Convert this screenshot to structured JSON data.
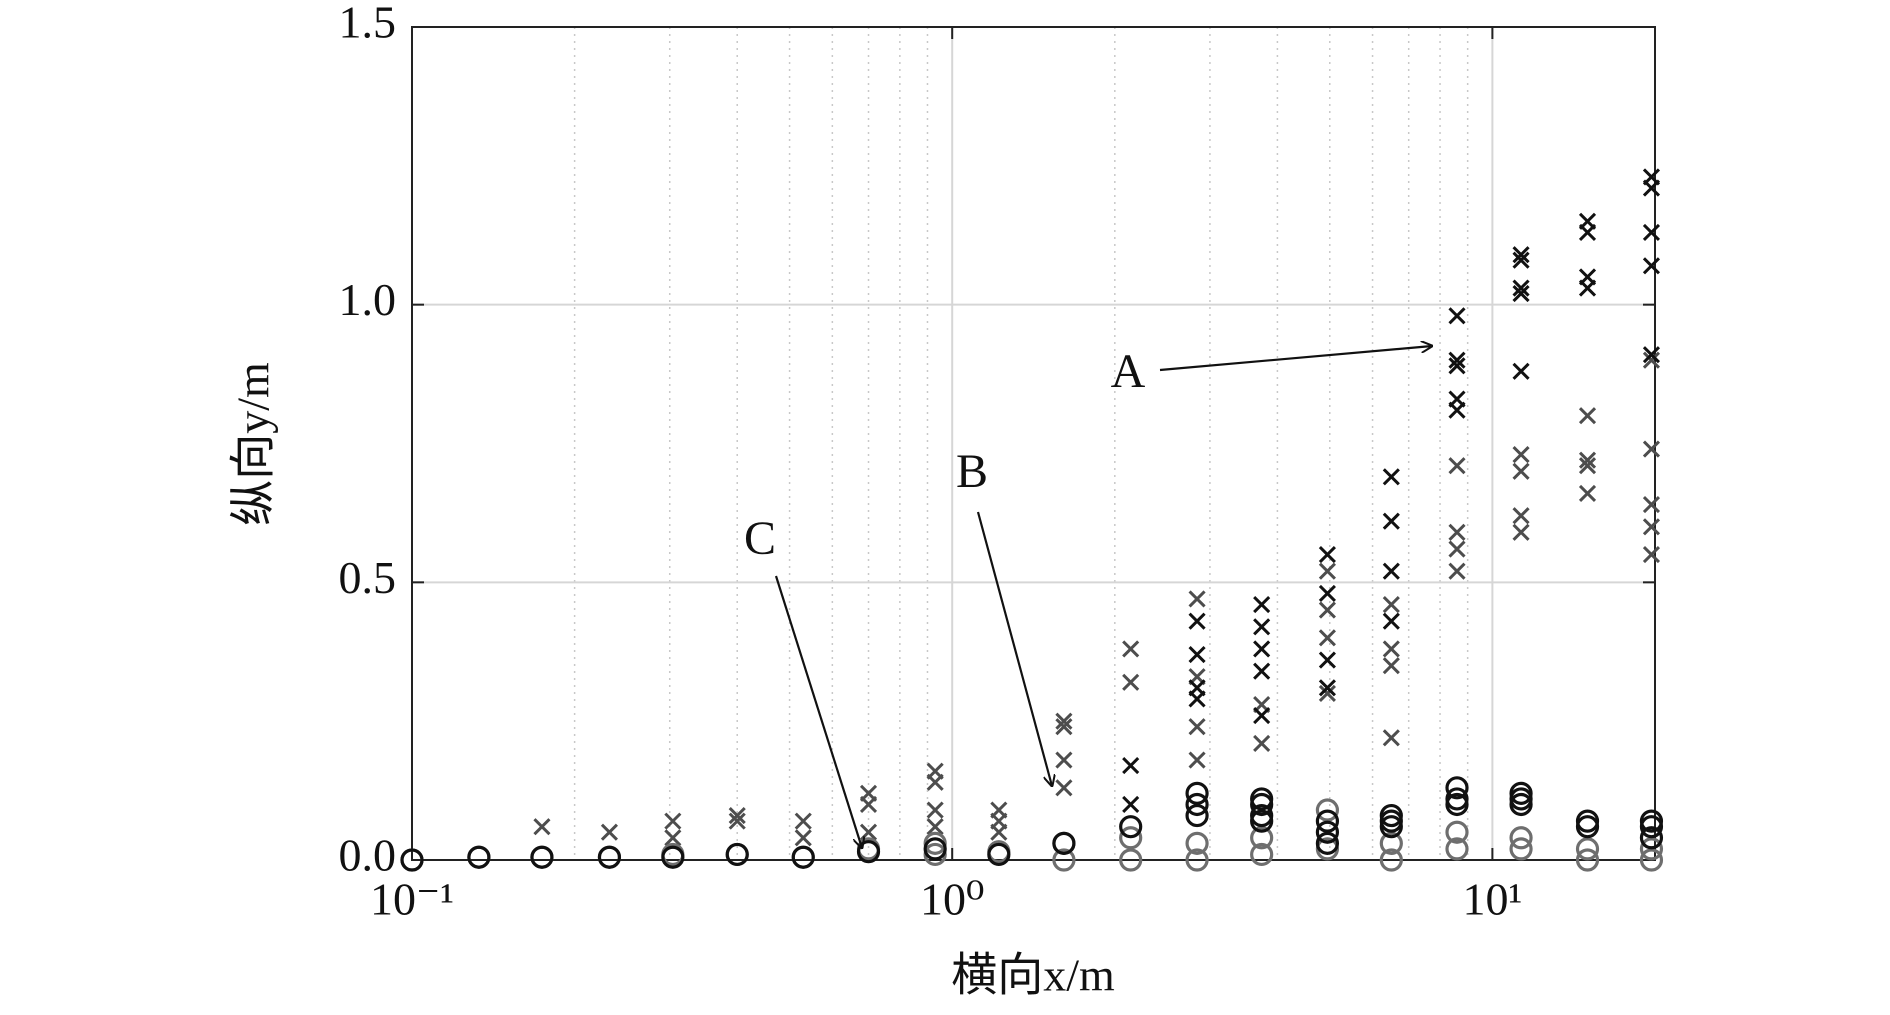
{
  "chart_data": {
    "type": "scatter",
    "xlabel": "横向x/m",
    "ylabel": "纵向y/m",
    "xscale": "log",
    "xlim": [
      0.1,
      20
    ],
    "ylim": [
      0,
      1.5
    ],
    "xticks": [
      {
        "value": 0.1,
        "label": "10⁻¹"
      },
      {
        "value": 1,
        "label": "10⁰"
      },
      {
        "value": 10,
        "label": "10¹"
      }
    ],
    "yticks": [
      {
        "value": 0,
        "label": "0.0"
      },
      0.5,
      {
        "value": 1,
        "label": "1.0"
      },
      1.5
    ],
    "grid": true,
    "minor_grid": true,
    "annotations": [
      "A",
      "B",
      "C"
    ],
    "series": [
      {
        "color": "#4d4d4d",
        "marker": "x",
        "x": [
          0.174,
          0.232,
          0.304,
          0.304,
          0.4,
          0.4,
          0.53,
          0.53,
          0.7,
          0.7,
          0.7,
          0.93,
          0.93,
          0.93,
          0.93,
          1.22,
          1.22,
          1.22,
          1.61,
          1.61,
          1.61,
          1.61,
          2.14,
          2.14,
          2.84,
          2.84,
          2.84,
          2.84,
          3.74,
          3.74,
          4.95,
          4.95,
          4.95,
          4.95,
          6.5,
          6.5,
          6.5,
          6.5,
          8.6,
          8.6,
          8.6,
          8.6,
          11.3,
          11.3,
          11.3,
          11.3,
          15,
          15,
          15,
          15,
          19.7,
          19.7,
          19.7,
          19.7,
          19.7
        ],
        "y": [
          0.06,
          0.05,
          0.07,
          0.04,
          0.08,
          0.07,
          0.07,
          0.04,
          0.12,
          0.1,
          0.05,
          0.16,
          0.14,
          0.09,
          0.06,
          0.09,
          0.07,
          0.05,
          0.25,
          0.24,
          0.18,
          0.13,
          0.38,
          0.32,
          0.47,
          0.33,
          0.24,
          0.18,
          0.28,
          0.21,
          0.52,
          0.45,
          0.4,
          0.3,
          0.46,
          0.38,
          0.35,
          0.22,
          0.71,
          0.59,
          0.56,
          0.52,
          0.73,
          0.7,
          0.62,
          0.59,
          0.8,
          0.72,
          0.71,
          0.66,
          0.9,
          0.74,
          0.64,
          0.6,
          0.55
        ]
      },
      {
        "color": "#111111",
        "marker": "x",
        "x": [
          2.14,
          2.14,
          2.84,
          2.84,
          2.84,
          2.84,
          3.74,
          3.74,
          3.74,
          3.74,
          3.74,
          4.95,
          4.95,
          4.95,
          4.95,
          6.5,
          6.5,
          6.5,
          6.5,
          8.6,
          8.6,
          8.6,
          8.6,
          8.6,
          11.3,
          11.3,
          11.3,
          11.3,
          11.3,
          15,
          15,
          15,
          15,
          19.7,
          19.7,
          19.7,
          19.7,
          19.7
        ],
        "y": [
          0.17,
          0.1,
          0.43,
          0.37,
          0.31,
          0.29,
          0.46,
          0.42,
          0.38,
          0.34,
          0.26,
          0.55,
          0.48,
          0.36,
          0.31,
          0.69,
          0.61,
          0.52,
          0.43,
          0.98,
          0.9,
          0.89,
          0.83,
          0.81,
          1.09,
          1.08,
          1.03,
          1.02,
          0.88,
          1.15,
          1.13,
          1.05,
          1.03,
          1.23,
          1.21,
          1.13,
          1.07,
          0.91
        ]
      },
      {
        "color": "#6e6e6e",
        "marker": "o",
        "x": [
          0.1,
          0.133,
          0.174,
          0.232,
          0.304,
          0.4,
          0.53,
          0.7,
          0.93,
          0.93,
          1.22,
          1.61,
          1.61,
          2.14,
          2.14,
          2.84,
          2.84,
          3.74,
          3.74,
          4.95,
          4.95,
          6.5,
          6.5,
          8.6,
          8.6,
          11.3,
          11.3,
          15,
          15,
          19.7,
          19.7
        ],
        "y": [
          0,
          0.005,
          0.005,
          0.005,
          0.01,
          0.01,
          0.005,
          0.02,
          0.03,
          0.01,
          0.015,
          0.03,
          0.0,
          0.04,
          0.0,
          0.03,
          0.0,
          0.04,
          0.01,
          0.09,
          0.02,
          0.03,
          0.0,
          0.05,
          0.02,
          0.04,
          0.02,
          0.02,
          0.0,
          0.02,
          0.0
        ]
      },
      {
        "color": "#111111",
        "marker": "o",
        "x": [
          0.1,
          0.133,
          0.174,
          0.232,
          0.304,
          0.4,
          0.53,
          0.7,
          0.93,
          1.22,
          1.61,
          2.14,
          2.84,
          2.84,
          2.84,
          3.74,
          3.74,
          3.74,
          3.74,
          4.95,
          4.95,
          4.95,
          6.5,
          6.5,
          6.5,
          8.6,
          8.6,
          8.6,
          11.3,
          11.3,
          11.3,
          15,
          15,
          19.7,
          19.7,
          19.7
        ],
        "y": [
          0,
          0.005,
          0.005,
          0.005,
          0.005,
          0.01,
          0.005,
          0.015,
          0.02,
          0.01,
          0.03,
          0.06,
          0.12,
          0.1,
          0.08,
          0.11,
          0.1,
          0.08,
          0.07,
          0.07,
          0.05,
          0.03,
          0.08,
          0.07,
          0.06,
          0.13,
          0.11,
          0.1,
          0.12,
          0.11,
          0.1,
          0.07,
          0.06,
          0.07,
          0.06,
          0.04
        ]
      }
    ]
  }
}
